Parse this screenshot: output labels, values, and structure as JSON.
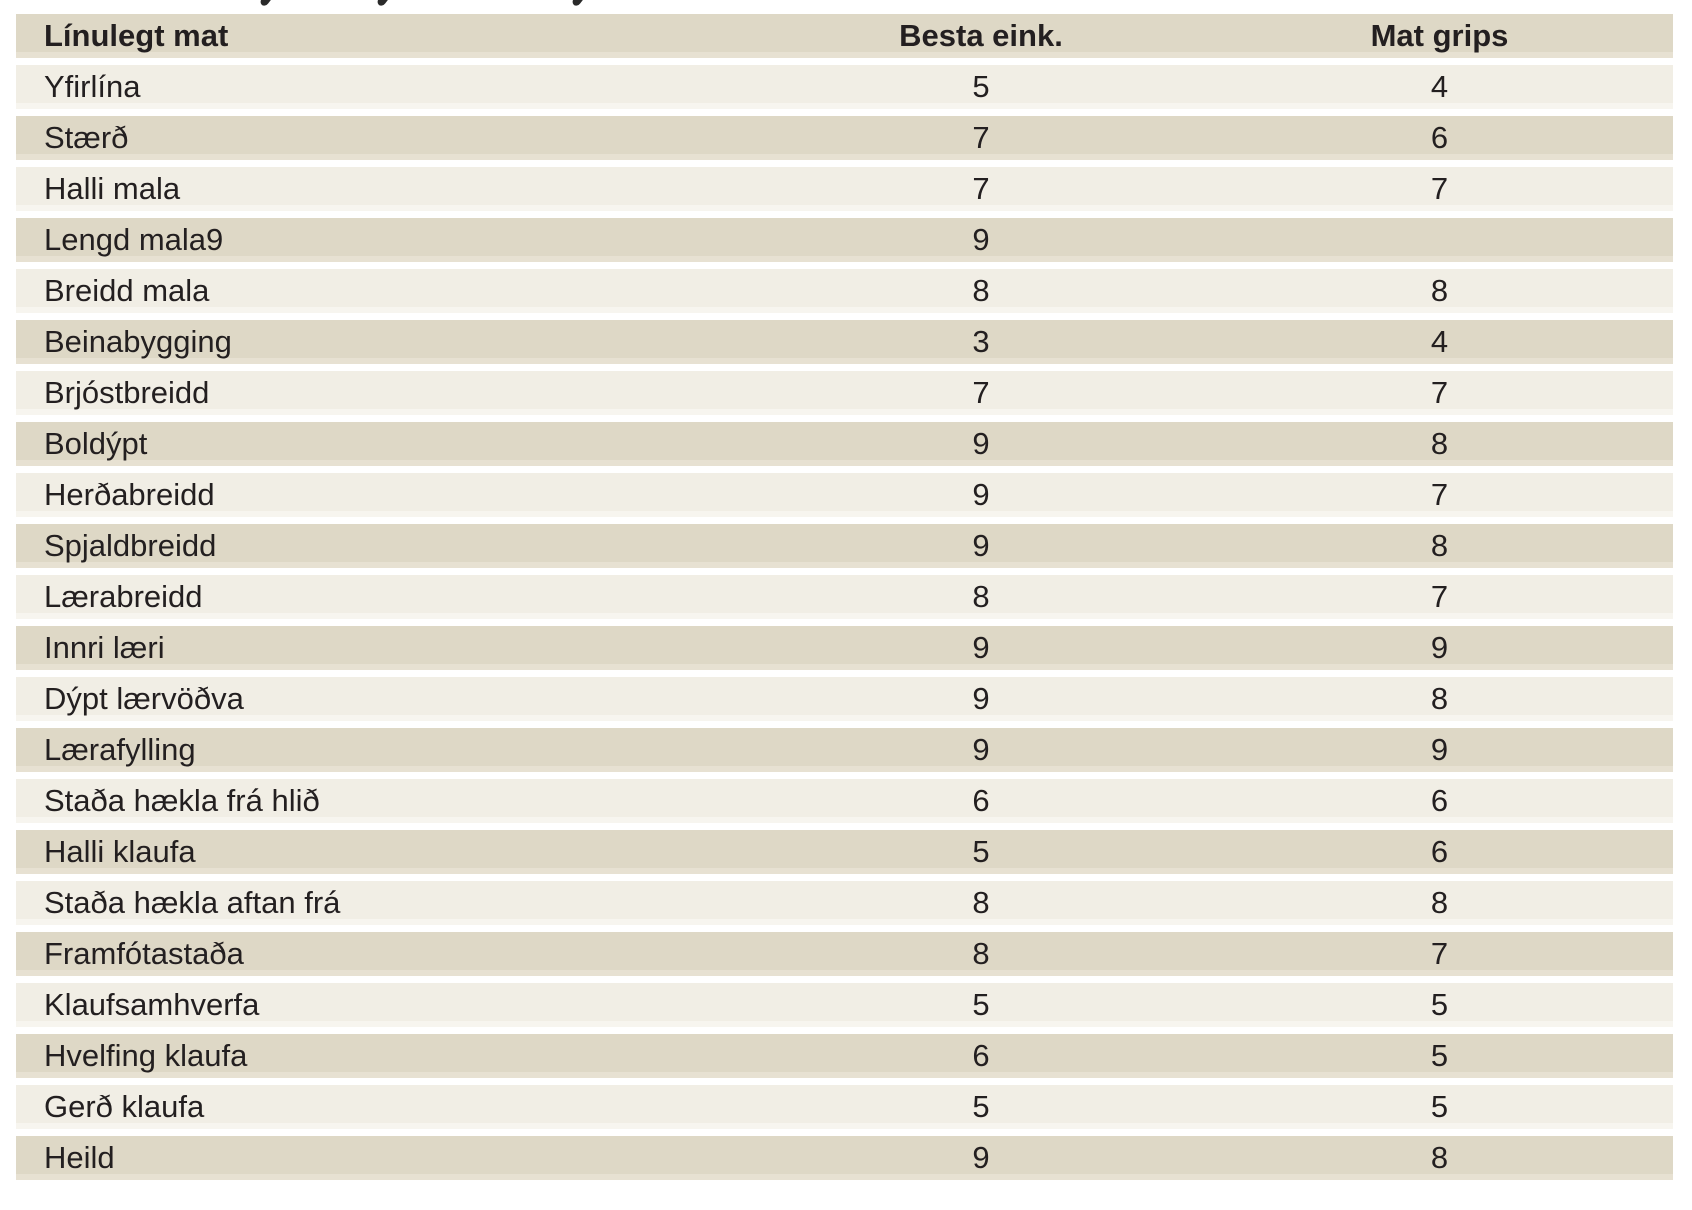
{
  "table": {
    "columns": [
      "Línulegt mat",
      "Besta eink.",
      "Mat grips"
    ],
    "rows": [
      {
        "label": "Yfirlína",
        "besta_eink": "5",
        "mat_grips": "4"
      },
      {
        "label": "Stærð",
        "besta_eink": "7",
        "mat_grips": "6"
      },
      {
        "label": "Halli mala",
        "besta_eink": "7",
        "mat_grips": "7"
      },
      {
        "label": "Lengd mala9",
        "besta_eink": "9",
        "mat_grips": ""
      },
      {
        "label": "Breidd mala",
        "besta_eink": "8",
        "mat_grips": "8"
      },
      {
        "label": "Beinabygging",
        "besta_eink": "3",
        "mat_grips": "4"
      },
      {
        "label": "Brjóstbreidd",
        "besta_eink": "7",
        "mat_grips": "7"
      },
      {
        "label": "Boldýpt",
        "besta_eink": "9",
        "mat_grips": "8"
      },
      {
        "label": "Herðabreidd",
        "besta_eink": "9",
        "mat_grips": "7"
      },
      {
        "label": "Spjaldbreidd",
        "besta_eink": "9",
        "mat_grips": "8"
      },
      {
        "label": "Lærabreidd",
        "besta_eink": "8",
        "mat_grips": "7"
      },
      {
        "label": "Innri læri",
        "besta_eink": "9",
        "mat_grips": "9"
      },
      {
        "label": "Dýpt lærvöðva",
        "besta_eink": "9",
        "mat_grips": "8"
      },
      {
        "label": "Lærafylling",
        "besta_eink": "9",
        "mat_grips": "9"
      },
      {
        "label": "Staða hækla frá hlið",
        "besta_eink": "6",
        "mat_grips": "6"
      },
      {
        "label": "Halli klaufa",
        "besta_eink": "5",
        "mat_grips": "6"
      },
      {
        "label": "Staða hækla aftan frá",
        "besta_eink": "8",
        "mat_grips": "8"
      },
      {
        "label": "Framfótastaða",
        "besta_eink": "8",
        "mat_grips": "7"
      },
      {
        "label": "Klaufsamhverfa",
        "besta_eink": "5",
        "mat_grips": "5"
      },
      {
        "label": "Hvelfing klaufa",
        "besta_eink": "6",
        "mat_grips": "5"
      },
      {
        "label": "Gerð klaufa",
        "besta_eink": "5",
        "mat_grips": "5"
      },
      {
        "label": "Heild",
        "besta_eink": "9",
        "mat_grips": "8"
      }
    ]
  },
  "colors": {
    "row_dark": "#ded8c6",
    "row_light": "#f1eee5",
    "text": "#231f20",
    "background": "#ffffff"
  }
}
